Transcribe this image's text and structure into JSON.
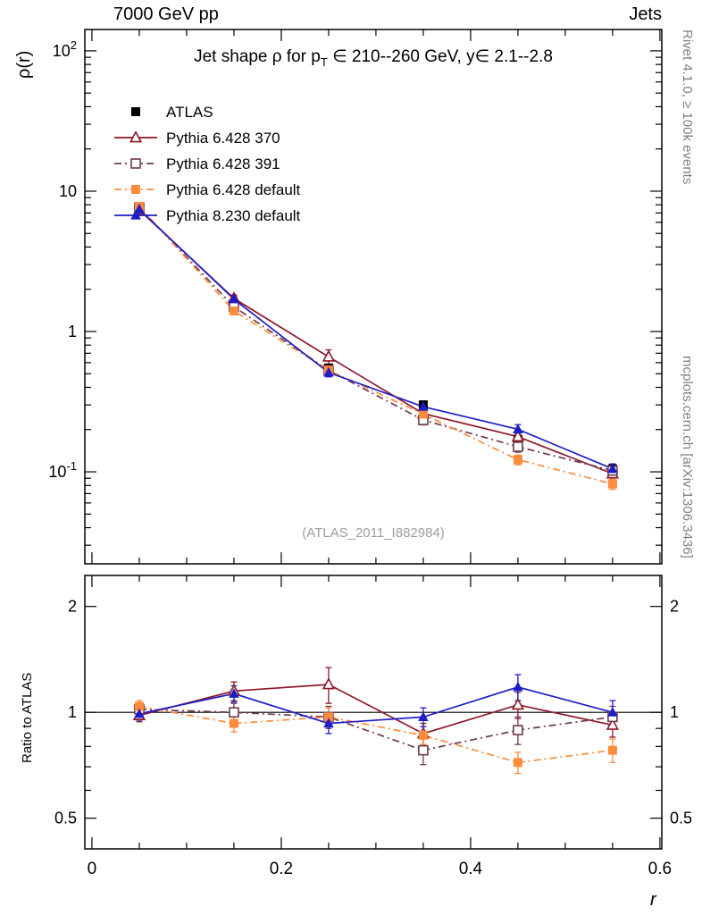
{
  "page": {
    "header_left": "7000 GeV pp",
    "header_right": "Jets",
    "watermark": "(ATLAS_2011_I882984)",
    "side_text_top": "Rivet 4.1.0, ≥ 100k events",
    "side_text_bottom": "mcplots.cern.ch [arXiv:1306.3436]",
    "colors": {
      "axis": "#000000",
      "watermark": "#9c9c9c",
      "side_text": "#808080"
    }
  },
  "chart_data": [
    {
      "type": "line",
      "panel": "main",
      "title": {
        "pre": "Jet shape ρ for p",
        "sub": "T",
        "post": " ∈ 210--260 GeV, y∈ 2.1--2.8"
      },
      "ylabel": "ρ(r)",
      "yscale": "log",
      "xlim": [
        -0.0075,
        0.602
      ],
      "ylim": [
        0.0221,
        142
      ],
      "xticks_major": [
        0,
        0.2,
        0.4,
        0.6
      ],
      "xtick_labels": [
        "0",
        "0.2",
        "0.4",
        "0.6"
      ],
      "xticks_minor_step": 0.05,
      "yticks": [
        {
          "v": 100,
          "label": "10",
          "exp": "2"
        },
        {
          "v": 10,
          "label": "10",
          "exp": ""
        },
        {
          "v": 1,
          "label": "1",
          "exp": ""
        },
        {
          "v": 0.1,
          "label": "10",
          "exp": "-1"
        }
      ],
      "grid": false,
      "legend_position": "top-left",
      "x": [
        0.05,
        0.15,
        0.25,
        0.35,
        0.45,
        0.55
      ],
      "series": [
        {
          "name": "ATLAS",
          "marker": "square-filled",
          "line": "none",
          "color": "#000000",
          "values": [
            7.5,
            1.5,
            0.55,
            0.3,
            0.17,
            0.105
          ],
          "errors": [
            0.35,
            0.08,
            0.035,
            0.02,
            0.013,
            0.008
          ]
        },
        {
          "name": "Pythia 6.428 370",
          "marker": "triangle-open",
          "line": "solid",
          "color": "#8e1728",
          "values": [
            7.35,
            1.72,
            0.66,
            0.26,
            0.178,
            0.097
          ],
          "errors": [
            0.3,
            0.1,
            0.08,
            0.019,
            0.015,
            0.008
          ]
        },
        {
          "name": "Pythia 6.428 391",
          "marker": "square-open",
          "line": "dashdot",
          "color": "#6e3a4e",
          "values": [
            7.65,
            1.5,
            0.53,
            0.234,
            0.151,
            0.102
          ],
          "errors": [
            0.3,
            0.08,
            0.04,
            0.018,
            0.013,
            0.008
          ]
        },
        {
          "name": "Pythia 6.428 default",
          "marker": "square-filled",
          "line": "dashdot",
          "color": "#ff8b3d",
          "values": [
            7.8,
            1.4,
            0.53,
            0.258,
            0.122,
            0.082
          ],
          "errors": [
            0.3,
            0.07,
            0.04,
            0.016,
            0.01,
            0.007
          ]
        },
        {
          "name": "Pythia 8.230 default",
          "marker": "triangle-filled",
          "line": "solid",
          "color": "#1e1ec8",
          "values": [
            7.43,
            1.7,
            0.51,
            0.291,
            0.201,
            0.105
          ],
          "errors": [
            0.3,
            0.09,
            0.035,
            0.019,
            0.016,
            0.009
          ]
        }
      ]
    },
    {
      "type": "line",
      "panel": "ratio",
      "ylabel": "Ratio to ATLAS",
      "xlabel": "r",
      "yscale": "log",
      "xlim": [
        -0.0075,
        0.602
      ],
      "ylim": [
        0.409,
        2.45
      ],
      "xticks_major": [
        0,
        0.2,
        0.4,
        0.6
      ],
      "xtick_labels": [
        "0",
        "0.2",
        "0.4",
        "0.6"
      ],
      "xticks_minor_step": 0.05,
      "yticks": [
        {
          "v": 2,
          "label": "2",
          "exp": ""
        },
        {
          "v": 1,
          "label": "1",
          "exp": ""
        },
        {
          "v": 0.5,
          "label": "0.5",
          "exp": ""
        }
      ],
      "refline": 1,
      "grid": false,
      "x": [
        0.05,
        0.15,
        0.25,
        0.35,
        0.45,
        0.55
      ],
      "series": [
        {
          "name": "Pythia 6.428 370",
          "marker": "triangle-open",
          "line": "solid",
          "color": "#8e1728",
          "values": [
            0.98,
            1.15,
            1.2,
            0.87,
            1.05,
            0.92
          ],
          "errors": [
            0.04,
            0.07,
            0.14,
            0.06,
            0.09,
            0.07
          ]
        },
        {
          "name": "Pythia 6.428 391",
          "marker": "square-open",
          "line": "dashdot",
          "color": "#6e3a4e",
          "values": [
            1.02,
            1.0,
            0.97,
            0.78,
            0.89,
            0.97
          ],
          "errors": [
            0.04,
            0.06,
            0.07,
            0.07,
            0.08,
            0.07
          ]
        },
        {
          "name": "Pythia 6.428 default",
          "marker": "square-filled",
          "line": "dashdot",
          "color": "#ff8b3d",
          "values": [
            1.04,
            0.93,
            0.97,
            0.86,
            0.72,
            0.78
          ],
          "errors": [
            0.04,
            0.05,
            0.06,
            0.05,
            0.05,
            0.06
          ]
        },
        {
          "name": "Pythia 8.230 default",
          "marker": "triangle-filled",
          "line": "solid",
          "color": "#1e1ec8",
          "values": [
            0.99,
            1.13,
            0.93,
            0.97,
            1.18,
            1.0
          ],
          "errors": [
            0.04,
            0.06,
            0.06,
            0.06,
            0.1,
            0.08
          ]
        }
      ]
    }
  ]
}
